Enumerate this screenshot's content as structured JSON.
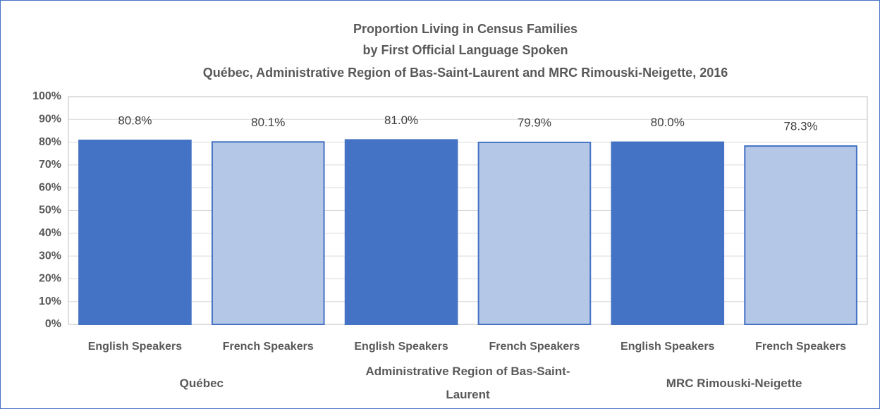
{
  "chart_data": {
    "type": "bar",
    "title": [
      "Proportion Living in Census Families",
      "by First Official Language Spoken",
      "Québec, Administrative Region of Bas-Saint-Laurent and MRC Rimouski-Neigette, 2016"
    ],
    "categories": [
      "English Speakers",
      "French Speakers",
      "English Speakers",
      "French Speakers",
      "English Speakers",
      "French Speakers"
    ],
    "groups": [
      "Québec",
      "Administrative Region of Bas-Saint-Laurent",
      "MRC Rimouski-Neigette"
    ],
    "values": [
      80.8,
      80.1,
      81.0,
      79.9,
      80.0,
      78.3
    ],
    "value_labels": [
      "80.8%",
      "80.1%",
      "81.0%",
      "79.9%",
      "80.0%",
      "78.3%"
    ],
    "colors": [
      "#4472c4",
      "#b4c7e7",
      "#4472c4",
      "#b4c7e7",
      "#4472c4",
      "#b4c7e7"
    ],
    "ylim": [
      0,
      100
    ],
    "yticks": [
      {
        "value": 0,
        "label": "0%"
      },
      {
        "value": 10,
        "label": "10%"
      },
      {
        "value": 20,
        "label": "20%"
      },
      {
        "value": 30,
        "label": "30%"
      },
      {
        "value": 40,
        "label": "40%"
      },
      {
        "value": 50,
        "label": "50%"
      },
      {
        "value": 60,
        "label": "60%"
      },
      {
        "value": 70,
        "label": "70%"
      },
      {
        "value": 80,
        "label": "80%"
      },
      {
        "value": 90,
        "label": "90%"
      },
      {
        "value": 100,
        "label": "100%"
      }
    ],
    "grid": true
  }
}
